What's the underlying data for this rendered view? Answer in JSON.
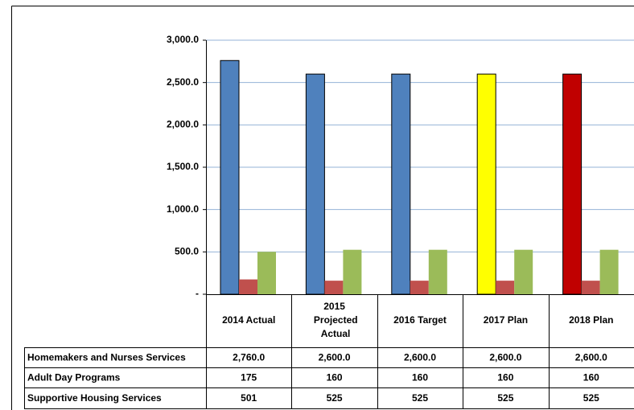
{
  "chart_data": {
    "type": "bar",
    "categories": [
      "2014 Actual",
      "2015 Projected Actual",
      "2016 Target",
      "2017 Plan",
      "2018 Plan"
    ],
    "series": [
      {
        "name": "Homemakers and Nurses Services",
        "color": "#4f81bd",
        "point_colors": [
          "#4f81bd",
          "#4f81bd",
          "#4f81bd",
          "#ffff00",
          "#c00000"
        ],
        "values": [
          2760,
          2600,
          2600,
          2600,
          2600
        ],
        "value_labels": [
          "2,760.0",
          "2,600.0",
          "2,600.0",
          "2,600.0",
          "2,600.0"
        ]
      },
      {
        "name": "Adult Day Programs",
        "color": "#c0504d",
        "values": [
          175,
          160,
          160,
          160,
          160
        ]
      },
      {
        "name": "Supportive Housing Services",
        "color": "#9bbb59",
        "values": [
          501,
          525,
          525,
          525,
          525
        ]
      }
    ],
    "ylim": [
      0,
      3000
    ],
    "yticks": [
      {
        "value": 0,
        "label": "-"
      },
      {
        "value": 500,
        "label": "500.0"
      },
      {
        "value": 1000,
        "label": "1,000.0"
      },
      {
        "value": 1500,
        "label": "1,500.0"
      },
      {
        "value": 2000,
        "label": "2,000.0"
      },
      {
        "value": 2500,
        "label": "2,500.0"
      },
      {
        "value": 3000,
        "label": "3,000.0"
      }
    ],
    "grid": true
  }
}
